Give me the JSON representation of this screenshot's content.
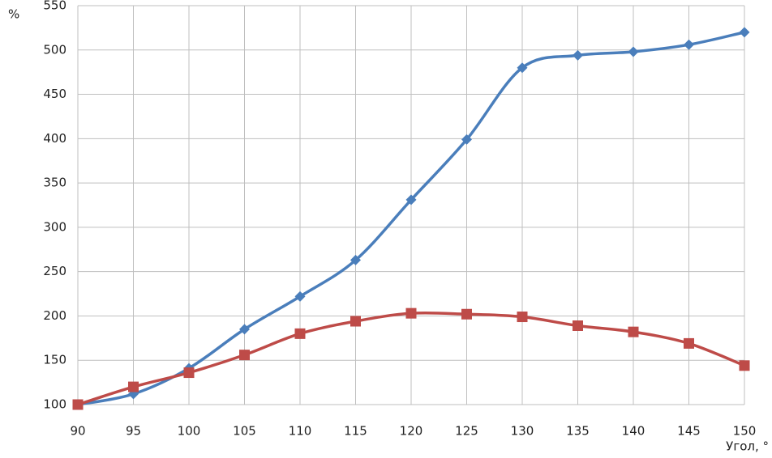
{
  "chart_data": {
    "type": "line",
    "smooth": true,
    "grid": true,
    "y_label": "%",
    "x_label": "Угол, °",
    "x": [
      90,
      95,
      100,
      105,
      110,
      115,
      120,
      125,
      130,
      135,
      140,
      145,
      150
    ],
    "xlim": [
      90,
      150
    ],
    "xticks": [
      90,
      95,
      100,
      105,
      110,
      115,
      120,
      125,
      130,
      135,
      140,
      145,
      150
    ],
    "ylim": [
      100,
      550
    ],
    "yticks": [
      100,
      150,
      200,
      250,
      300,
      350,
      400,
      450,
      500,
      550
    ],
    "series": [
      {
        "color": "#4a7ebb",
        "marker": "diamond",
        "values": [
          100,
          112,
          141,
          185,
          222,
          263,
          331,
          399,
          480,
          494,
          498,
          506,
          520
        ]
      },
      {
        "color": "#be4b48",
        "marker": "square",
        "values": [
          100,
          120,
          136,
          156,
          180,
          194,
          203,
          202,
          199,
          189,
          182,
          169,
          144
        ]
      }
    ]
  }
}
